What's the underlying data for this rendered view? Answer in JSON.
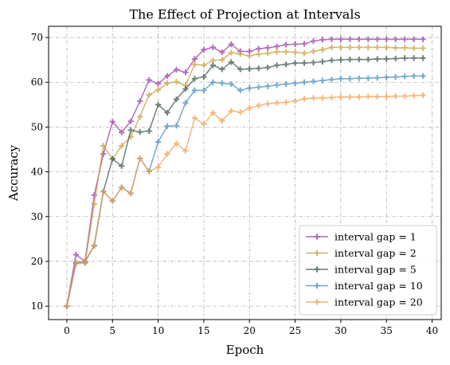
{
  "chart_data": {
    "type": "line",
    "title": "The Effect of Projection at Intervals",
    "xlabel": "Epoch",
    "ylabel": "Accuracy",
    "xlim": [
      -2,
      41
    ],
    "ylim": [
      7,
      72.5
    ],
    "xticks": [
      0,
      5,
      10,
      15,
      20,
      25,
      30,
      35,
      40
    ],
    "yticks": [
      10,
      20,
      30,
      40,
      50,
      60,
      70
    ],
    "grid": true,
    "legend_position": "lower-right",
    "x": [
      0,
      1,
      2,
      3,
      4,
      5,
      6,
      7,
      8,
      9,
      10,
      11,
      12,
      13,
      14,
      15,
      16,
      17,
      18,
      19,
      20,
      21,
      22,
      23,
      24,
      25,
      26,
      27,
      28,
      29,
      30,
      31,
      32,
      33,
      34,
      35,
      36,
      37,
      38,
      39
    ],
    "series": [
      {
        "name": "interval gap = 1",
        "color": "#9b3fa8",
        "values": [
          10,
          21.5,
          20,
          34.8,
          44,
          51.2,
          48.8,
          51.3,
          55.8,
          60.5,
          59.7,
          61.4,
          62.8,
          62.2,
          65.2,
          67.3,
          67.8,
          66.7,
          68.5,
          66.9,
          66.9,
          67.5,
          67.7,
          68.0,
          68.4,
          68.5,
          68.6,
          69.2,
          69.5,
          69.6,
          69.6,
          69.6,
          69.6,
          69.6,
          69.6,
          69.6,
          69.6,
          69.6,
          69.6,
          69.6
        ]
      },
      {
        "name": "interval gap = 2",
        "color": "#c9a040",
        "values": [
          10,
          19.5,
          19.6,
          32.8,
          45.8,
          42.9,
          45.8,
          47.8,
          52.3,
          57.2,
          58.3,
          59.8,
          60.1,
          59.3,
          64.0,
          63.8,
          64.9,
          65.0,
          66.6,
          66.3,
          65.9,
          66.3,
          66.5,
          66.8,
          66.8,
          66.7,
          66.5,
          66.9,
          67.3,
          67.8,
          67.8,
          67.8,
          67.8,
          67.8,
          67.8,
          67.8,
          67.7,
          67.7,
          67.6,
          67.6
        ]
      },
      {
        "name": "interval gap = 5",
        "color": "#3e5a55",
        "values": [
          10,
          19.7,
          19.9,
          23.5,
          35.6,
          42.9,
          41.3,
          49.3,
          48.9,
          49.1,
          55.0,
          53.2,
          56.2,
          58.5,
          60.8,
          61.2,
          63.8,
          62.9,
          64.5,
          62.9,
          63.0,
          63.1,
          63.3,
          63.8,
          64.0,
          64.3,
          64.3,
          64.4,
          64.6,
          64.9,
          65.0,
          65.1,
          65.1,
          65.1,
          65.2,
          65.2,
          65.3,
          65.4,
          65.4,
          65.4
        ]
      },
      {
        "name": "interval gap = 10",
        "color": "#4b8fbf",
        "values": [
          10,
          19.7,
          20.0,
          23.5,
          35.6,
          33.5,
          36.5,
          35.2,
          43.0,
          40.1,
          46.7,
          50.2,
          50.3,
          55.4,
          58.2,
          58.2,
          60.0,
          59.8,
          59.6,
          58.2,
          58.7,
          58.9,
          59.1,
          59.4,
          59.6,
          59.8,
          60.0,
          60.2,
          60.4,
          60.6,
          60.8,
          60.8,
          60.9,
          60.9,
          61.0,
          61.1,
          61.2,
          61.3,
          61.4,
          61.4
        ]
      },
      {
        "name": "interval gap = 20",
        "color": "#f5a04f",
        "values": [
          10,
          19.7,
          20.0,
          23.5,
          35.6,
          33.5,
          36.5,
          35.2,
          43.0,
          40.1,
          41.0,
          44.0,
          46.3,
          44.7,
          52.0,
          50.6,
          53.2,
          51.4,
          53.6,
          53.3,
          54.2,
          54.8,
          55.2,
          55.4,
          55.5,
          55.8,
          56.3,
          56.5,
          56.5,
          56.6,
          56.7,
          56.7,
          56.7,
          56.8,
          56.8,
          56.8,
          56.9,
          56.9,
          57.0,
          57.1
        ]
      }
    ]
  }
}
